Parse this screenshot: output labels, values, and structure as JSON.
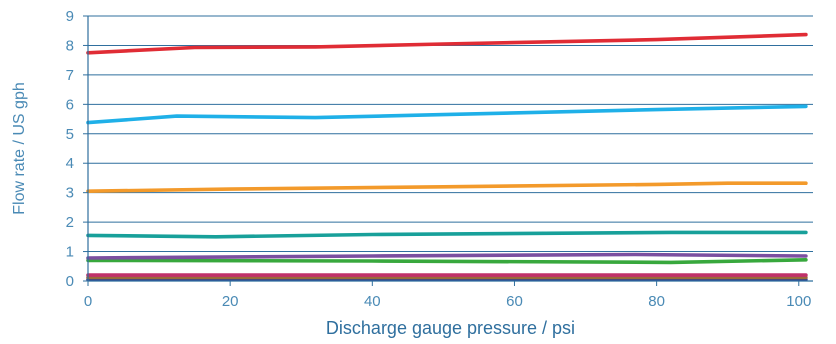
{
  "chart_data": {
    "type": "line",
    "title": "",
    "xlabel": "Discharge gauge pressure / psi",
    "ylabel": "Flow rate / US gph",
    "xlim": [
      0,
      102
    ],
    "ylim": [
      0,
      9
    ],
    "xticks": [
      0,
      20,
      40,
      60,
      80,
      100
    ],
    "yticks": [
      0,
      1,
      2,
      3,
      4,
      5,
      6,
      7,
      8,
      9
    ],
    "grid": "horizontal",
    "legend": "none",
    "colors": {
      "axis": "#2f6f9e",
      "gridline": "#2f6f9e",
      "tick_text": "#4a8ab5"
    },
    "series": [
      {
        "color": "#e02c35",
        "x": [
          0,
          15,
          32,
          50,
          80,
          101
        ],
        "values": [
          7.75,
          7.93,
          7.95,
          8.05,
          8.2,
          8.37
        ]
      },
      {
        "color": "#1fb0e8",
        "x": [
          0,
          12.5,
          32,
          50,
          80,
          101
        ],
        "values": [
          5.38,
          5.6,
          5.55,
          5.65,
          5.82,
          5.93
        ]
      },
      {
        "color": "#f39a2b",
        "x": [
          0,
          20,
          50,
          80,
          90,
          101
        ],
        "values": [
          3.05,
          3.12,
          3.2,
          3.28,
          3.32,
          3.32
        ]
      },
      {
        "color": "#18a09a",
        "x": [
          0,
          18,
          40,
          82,
          101
        ],
        "values": [
          1.55,
          1.5,
          1.58,
          1.65,
          1.65
        ]
      },
      {
        "color": "#7b4fa0",
        "x": [
          0,
          40,
          77,
          101
        ],
        "values": [
          0.78,
          0.85,
          0.9,
          0.85
        ]
      },
      {
        "color": "#38a83d",
        "x": [
          0,
          40,
          82,
          101
        ],
        "values": [
          0.7,
          0.68,
          0.63,
          0.72
        ]
      },
      {
        "color": "#c0306a",
        "x": [
          0,
          101
        ],
        "values": [
          0.2,
          0.2
        ]
      },
      {
        "color": "#9a6a3a",
        "x": [
          0,
          101
        ],
        "values": [
          0.12,
          0.12
        ]
      },
      {
        "color": "#2c3e90",
        "x": [
          0,
          101
        ],
        "values": [
          0.05,
          0.05
        ]
      }
    ]
  }
}
